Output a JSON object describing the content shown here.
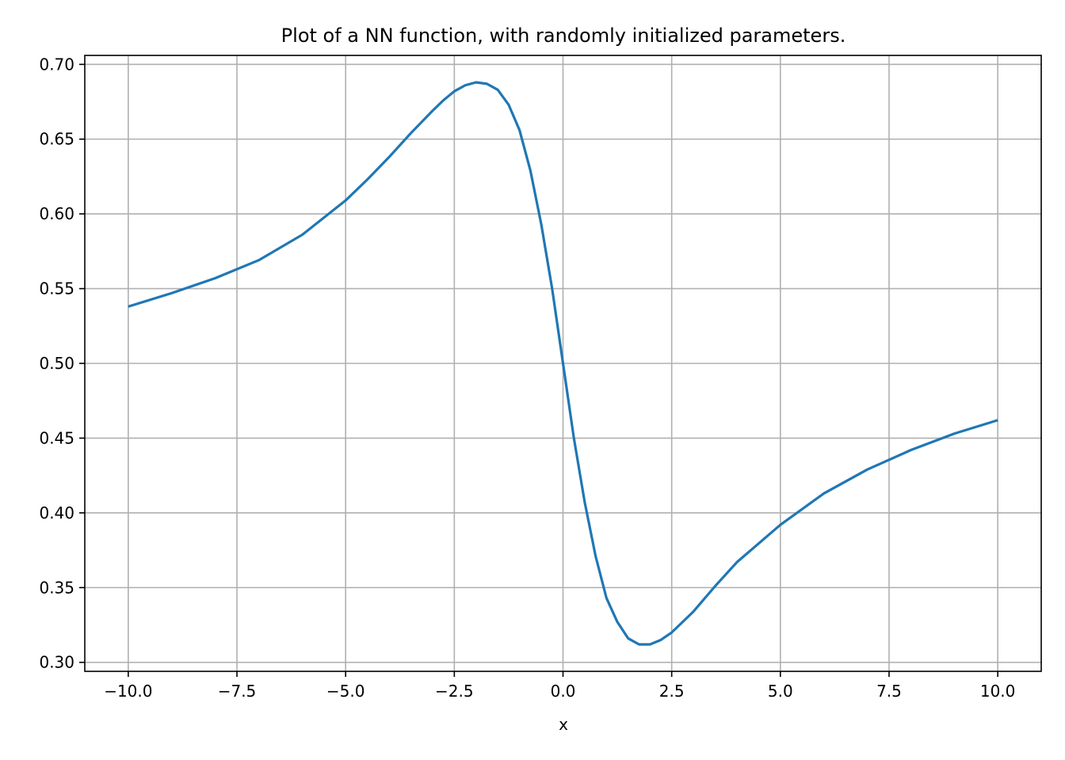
{
  "chart_data": {
    "type": "line",
    "title": "Plot of a NN function, with randomly initialized parameters.",
    "xlabel": "x",
    "ylabel": "",
    "xlim": [
      -11.0,
      11.0
    ],
    "ylim": [
      0.294,
      0.706
    ],
    "grid": true,
    "x_ticks": [
      -10.0,
      -7.5,
      -5.0,
      -2.5,
      0.0,
      2.5,
      5.0,
      7.5,
      10.0
    ],
    "x_tick_labels": [
      "−10.0",
      "−7.5",
      "−5.0",
      "−2.5",
      "0.0",
      "2.5",
      "5.0",
      "7.5",
      "10.0"
    ],
    "y_ticks": [
      0.3,
      0.35,
      0.4,
      0.45,
      0.5,
      0.55,
      0.6,
      0.65,
      0.7
    ],
    "y_tick_labels": [
      "0.30",
      "0.35",
      "0.40",
      "0.45",
      "0.50",
      "0.55",
      "0.60",
      "0.65",
      "0.70"
    ],
    "series": [
      {
        "color": "#1f77b4",
        "x": [
          -10,
          -9,
          -8,
          -7,
          -6,
          -5,
          -4.5,
          -4,
          -3.5,
          -3,
          -2.75,
          -2.5,
          -2.25,
          -2,
          -1.75,
          -1.5,
          -1.25,
          -1,
          -0.75,
          -0.5,
          -0.25,
          0,
          0.25,
          0.5,
          0.75,
          1,
          1.25,
          1.5,
          1.75,
          2,
          2.25,
          2.5,
          3,
          3.5,
          4,
          5,
          6,
          7,
          8,
          9,
          10
        ],
        "y": [
          0.538,
          0.547,
          0.557,
          0.569,
          0.586,
          0.609,
          0.623,
          0.638,
          0.654,
          0.669,
          0.676,
          0.682,
          0.686,
          0.688,
          0.687,
          0.683,
          0.673,
          0.656,
          0.629,
          0.593,
          0.55,
          0.5,
          0.45,
          0.407,
          0.371,
          0.343,
          0.327,
          0.316,
          0.312,
          0.312,
          0.315,
          0.32,
          0.334,
          0.351,
          0.367,
          0.392,
          0.413,
          0.429,
          0.442,
          0.453,
          0.462
        ]
      }
    ]
  }
}
